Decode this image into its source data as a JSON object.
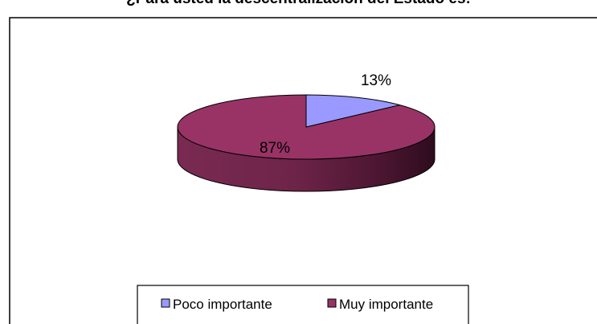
{
  "chart_data": {
    "type": "pie",
    "title": "¿Para usted la descentralización del Estado es:",
    "categories": [
      "Poco importante",
      "Muy importante"
    ],
    "values": [
      13,
      87
    ],
    "labels": [
      "13%",
      "87%"
    ],
    "colors": [
      "#9999FF",
      "#993366"
    ],
    "legend": "bottom",
    "style": "3d"
  }
}
